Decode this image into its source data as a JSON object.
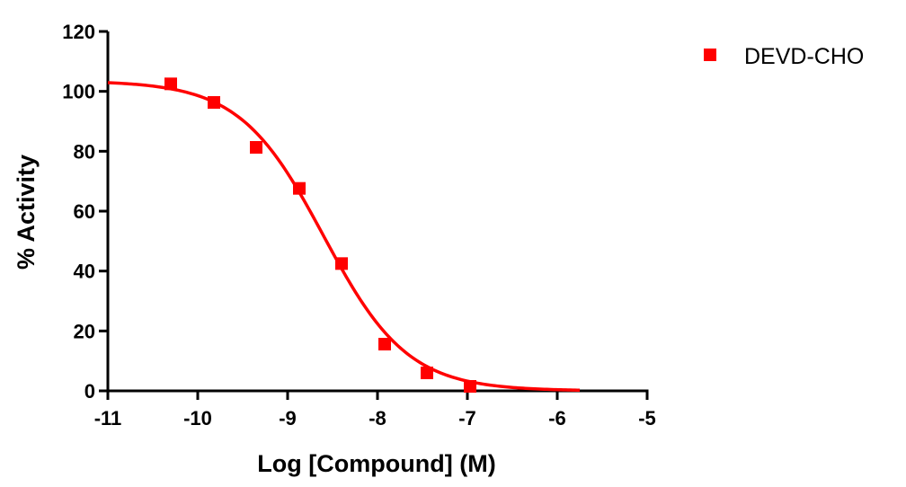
{
  "chart_data": {
    "type": "scatter",
    "title": "",
    "xlabel": "Log [Compound] (M)",
    "ylabel": "% Activity",
    "xlim": [
      -11,
      -5
    ],
    "ylim": [
      0,
      120
    ],
    "x_ticks": [
      -11,
      -10,
      -9,
      -8,
      -7,
      -6,
      -5
    ],
    "y_ticks": [
      0,
      20,
      40,
      60,
      80,
      100,
      120
    ],
    "grid": false,
    "legend_position": "top-right",
    "series": [
      {
        "name": "DEVD-CHO",
        "color": "#ff0000",
        "marker": "square",
        "points": [
          {
            "x": -10.3,
            "y": 102.5
          },
          {
            "x": -9.82,
            "y": 96.3
          },
          {
            "x": -9.35,
            "y": 81.3
          },
          {
            "x": -8.87,
            "y": 67.6
          },
          {
            "x": -8.4,
            "y": 42.5
          },
          {
            "x": -7.92,
            "y": 15.6
          },
          {
            "x": -7.45,
            "y": 6.0
          },
          {
            "x": -6.97,
            "y": 1.5
          }
        ],
        "fit": {
          "model": "sigmoidal dose-response",
          "top": 103.5,
          "bottom": 0,
          "logIC50": -8.6,
          "hill_slope": -0.93,
          "x_range": [
            -11,
            -5.75
          ]
        }
      }
    ]
  }
}
